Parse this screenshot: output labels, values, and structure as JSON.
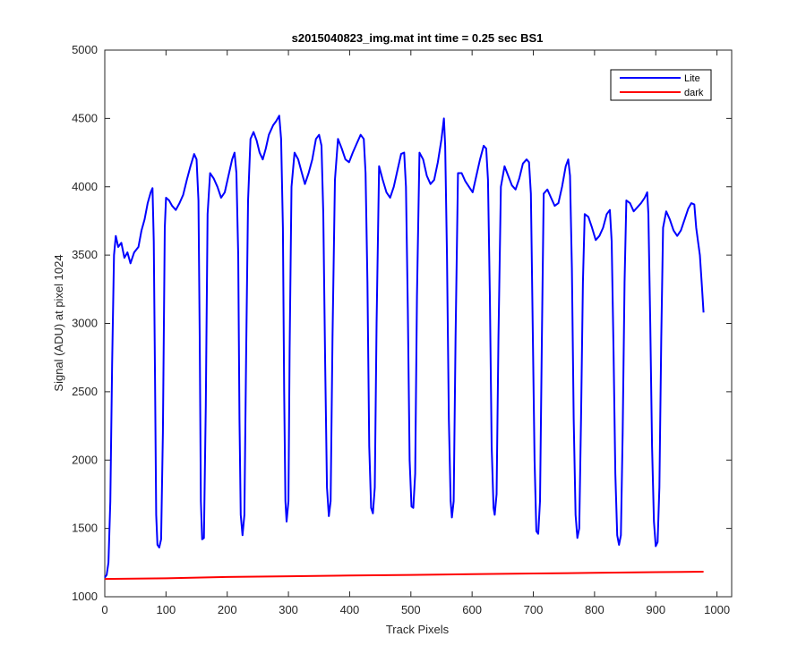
{
  "chart_data": {
    "type": "line",
    "title": "s2015040823_img.mat int time = 0.25 sec   BS1",
    "xlabel": "Track Pixels",
    "ylabel": "Signal (ADU) at pixel 1024",
    "xlim": [
      0,
      1024
    ],
    "ylim": [
      1000,
      5000
    ],
    "x_ticks": [
      0,
      100,
      200,
      300,
      400,
      500,
      600,
      700,
      800,
      900,
      1000
    ],
    "y_ticks": [
      1000,
      1500,
      2000,
      2500,
      3000,
      3500,
      4000,
      4500,
      5000
    ],
    "grid": false,
    "legend_position": "top-right",
    "series": [
      {
        "name": "Lite",
        "color": "#0000ff",
        "points": [
          [
            0,
            1140
          ],
          [
            3,
            1160
          ],
          [
            6,
            1250
          ],
          [
            9,
            1700
          ],
          [
            12,
            2700
          ],
          [
            15,
            3500
          ],
          [
            18,
            3640
          ],
          [
            22,
            3560
          ],
          [
            27,
            3590
          ],
          [
            32,
            3480
          ],
          [
            37,
            3520
          ],
          [
            42,
            3440
          ],
          [
            48,
            3520
          ],
          [
            55,
            3560
          ],
          [
            60,
            3680
          ],
          [
            65,
            3760
          ],
          [
            70,
            3880
          ],
          [
            75,
            3960
          ],
          [
            78,
            3990
          ],
          [
            80,
            3600
          ],
          [
            82,
            2600
          ],
          [
            84,
            1600
          ],
          [
            86,
            1380
          ],
          [
            89,
            1360
          ],
          [
            92,
            1420
          ],
          [
            95,
            2200
          ],
          [
            98,
            3700
          ],
          [
            100,
            3920
          ],
          [
            105,
            3900
          ],
          [
            110,
            3860
          ],
          [
            116,
            3830
          ],
          [
            122,
            3880
          ],
          [
            128,
            3940
          ],
          [
            134,
            4050
          ],
          [
            140,
            4150
          ],
          [
            146,
            4240
          ],
          [
            150,
            4200
          ],
          [
            153,
            3900
          ],
          [
            155,
            2900
          ],
          [
            157,
            1700
          ],
          [
            159,
            1420
          ],
          [
            162,
            1430
          ],
          [
            165,
            2400
          ],
          [
            168,
            3800
          ],
          [
            172,
            4100
          ],
          [
            178,
            4060
          ],
          [
            184,
            4000
          ],
          [
            190,
            3920
          ],
          [
            196,
            3960
          ],
          [
            202,
            4080
          ],
          [
            208,
            4200
          ],
          [
            212,
            4250
          ],
          [
            215,
            4100
          ],
          [
            218,
            3500
          ],
          [
            220,
            2300
          ],
          [
            222,
            1600
          ],
          [
            225,
            1450
          ],
          [
            228,
            1600
          ],
          [
            231,
            2800
          ],
          [
            234,
            3900
          ],
          [
            238,
            4350
          ],
          [
            243,
            4400
          ],
          [
            248,
            4340
          ],
          [
            253,
            4250
          ],
          [
            258,
            4200
          ],
          [
            263,
            4280
          ],
          [
            268,
            4380
          ],
          [
            275,
            4450
          ],
          [
            280,
            4480
          ],
          [
            285,
            4520
          ],
          [
            288,
            4350
          ],
          [
            291,
            3700
          ],
          [
            293,
            2500
          ],
          [
            295,
            1700
          ],
          [
            297,
            1550
          ],
          [
            300,
            1700
          ],
          [
            302,
            2800
          ],
          [
            305,
            4000
          ],
          [
            310,
            4250
          ],
          [
            316,
            4200
          ],
          [
            322,
            4100
          ],
          [
            327,
            4020
          ],
          [
            333,
            4100
          ],
          [
            339,
            4200
          ],
          [
            345,
            4350
          ],
          [
            350,
            4380
          ],
          [
            354,
            4300
          ],
          [
            357,
            3800
          ],
          [
            360,
            2700
          ],
          [
            363,
            1800
          ],
          [
            366,
            1590
          ],
          [
            369,
            1700
          ],
          [
            372,
            2900
          ],
          [
            376,
            4050
          ],
          [
            381,
            4350
          ],
          [
            387,
            4280
          ],
          [
            393,
            4200
          ],
          [
            399,
            4180
          ],
          [
            405,
            4250
          ],
          [
            412,
            4320
          ],
          [
            418,
            4380
          ],
          [
            423,
            4350
          ],
          [
            426,
            4100
          ],
          [
            429,
            3300
          ],
          [
            432,
            2100
          ],
          [
            435,
            1650
          ],
          [
            438,
            1610
          ],
          [
            441,
            1800
          ],
          [
            444,
            3000
          ],
          [
            448,
            4150
          ],
          [
            454,
            4050
          ],
          [
            460,
            3960
          ],
          [
            466,
            3920
          ],
          [
            472,
            4000
          ],
          [
            478,
            4120
          ],
          [
            484,
            4240
          ],
          [
            489,
            4250
          ],
          [
            492,
            4000
          ],
          [
            495,
            3100
          ],
          [
            498,
            2000
          ],
          [
            501,
            1660
          ],
          [
            504,
            1650
          ],
          [
            507,
            1900
          ],
          [
            510,
            3200
          ],
          [
            514,
            4250
          ],
          [
            520,
            4200
          ],
          [
            526,
            4080
          ],
          [
            532,
            4020
          ],
          [
            538,
            4050
          ],
          [
            544,
            4180
          ],
          [
            550,
            4350
          ],
          [
            554,
            4500
          ],
          [
            556,
            4300
          ],
          [
            559,
            3500
          ],
          [
            562,
            2300
          ],
          [
            565,
            1700
          ],
          [
            567,
            1580
          ],
          [
            570,
            1700
          ],
          [
            573,
            2900
          ],
          [
            577,
            4100
          ],
          [
            583,
            4100
          ],
          [
            589,
            4040
          ],
          [
            595,
            4000
          ],
          [
            601,
            3960
          ],
          [
            607,
            4080
          ],
          [
            613,
            4200
          ],
          [
            619,
            4300
          ],
          [
            623,
            4280
          ],
          [
            626,
            4050
          ],
          [
            629,
            3200
          ],
          [
            632,
            2100
          ],
          [
            635,
            1650
          ],
          [
            637,
            1600
          ],
          [
            640,
            1750
          ],
          [
            643,
            2900
          ],
          [
            647,
            4000
          ],
          [
            653,
            4150
          ],
          [
            659,
            4080
          ],
          [
            665,
            4010
          ],
          [
            671,
            3980
          ],
          [
            677,
            4060
          ],
          [
            683,
            4170
          ],
          [
            689,
            4200
          ],
          [
            693,
            4180
          ],
          [
            696,
            3950
          ],
          [
            699,
            3000
          ],
          [
            702,
            2000
          ],
          [
            705,
            1480
          ],
          [
            708,
            1460
          ],
          [
            711,
            1700
          ],
          [
            714,
            2900
          ],
          [
            717,
            3950
          ],
          [
            723,
            3980
          ],
          [
            729,
            3920
          ],
          [
            735,
            3860
          ],
          [
            741,
            3880
          ],
          [
            747,
            4000
          ],
          [
            753,
            4150
          ],
          [
            757,
            4200
          ],
          [
            760,
            4080
          ],
          [
            763,
            3400
          ],
          [
            766,
            2300
          ],
          [
            769,
            1600
          ],
          [
            772,
            1430
          ],
          [
            775,
            1500
          ],
          [
            778,
            2300
          ],
          [
            781,
            3300
          ],
          [
            784,
            3800
          ],
          [
            790,
            3780
          ],
          [
            796,
            3700
          ],
          [
            802,
            3610
          ],
          [
            808,
            3640
          ],
          [
            814,
            3700
          ],
          [
            820,
            3800
          ],
          [
            825,
            3830
          ],
          [
            828,
            3600
          ],
          [
            831,
            2800
          ],
          [
            834,
            1900
          ],
          [
            837,
            1450
          ],
          [
            840,
            1380
          ],
          [
            843,
            1450
          ],
          [
            846,
            2200
          ],
          [
            849,
            3300
          ],
          [
            852,
            3900
          ],
          [
            858,
            3880
          ],
          [
            864,
            3820
          ],
          [
            870,
            3850
          ],
          [
            876,
            3880
          ],
          [
            882,
            3920
          ],
          [
            886,
            3960
          ],
          [
            888,
            3800
          ],
          [
            891,
            3000
          ],
          [
            894,
            2100
          ],
          [
            897,
            1550
          ],
          [
            900,
            1370
          ],
          [
            903,
            1400
          ],
          [
            906,
            1800
          ],
          [
            909,
            2900
          ],
          [
            912,
            3700
          ],
          [
            917,
            3820
          ],
          [
            923,
            3760
          ],
          [
            929,
            3680
          ],
          [
            935,
            3640
          ],
          [
            941,
            3680
          ],
          [
            947,
            3760
          ],
          [
            953,
            3840
          ],
          [
            958,
            3880
          ],
          [
            963,
            3870
          ],
          [
            966,
            3700
          ],
          [
            969,
            3600
          ],
          [
            972,
            3500
          ],
          [
            975,
            3300
          ],
          [
            978,
            3080
          ]
        ]
      },
      {
        "name": "dark",
        "color": "#ff0000",
        "points": [
          [
            0,
            1130
          ],
          [
            100,
            1135
          ],
          [
            200,
            1145
          ],
          [
            300,
            1150
          ],
          [
            400,
            1155
          ],
          [
            500,
            1160
          ],
          [
            600,
            1165
          ],
          [
            700,
            1170
          ],
          [
            800,
            1175
          ],
          [
            900,
            1180
          ],
          [
            978,
            1183
          ]
        ]
      }
    ]
  }
}
